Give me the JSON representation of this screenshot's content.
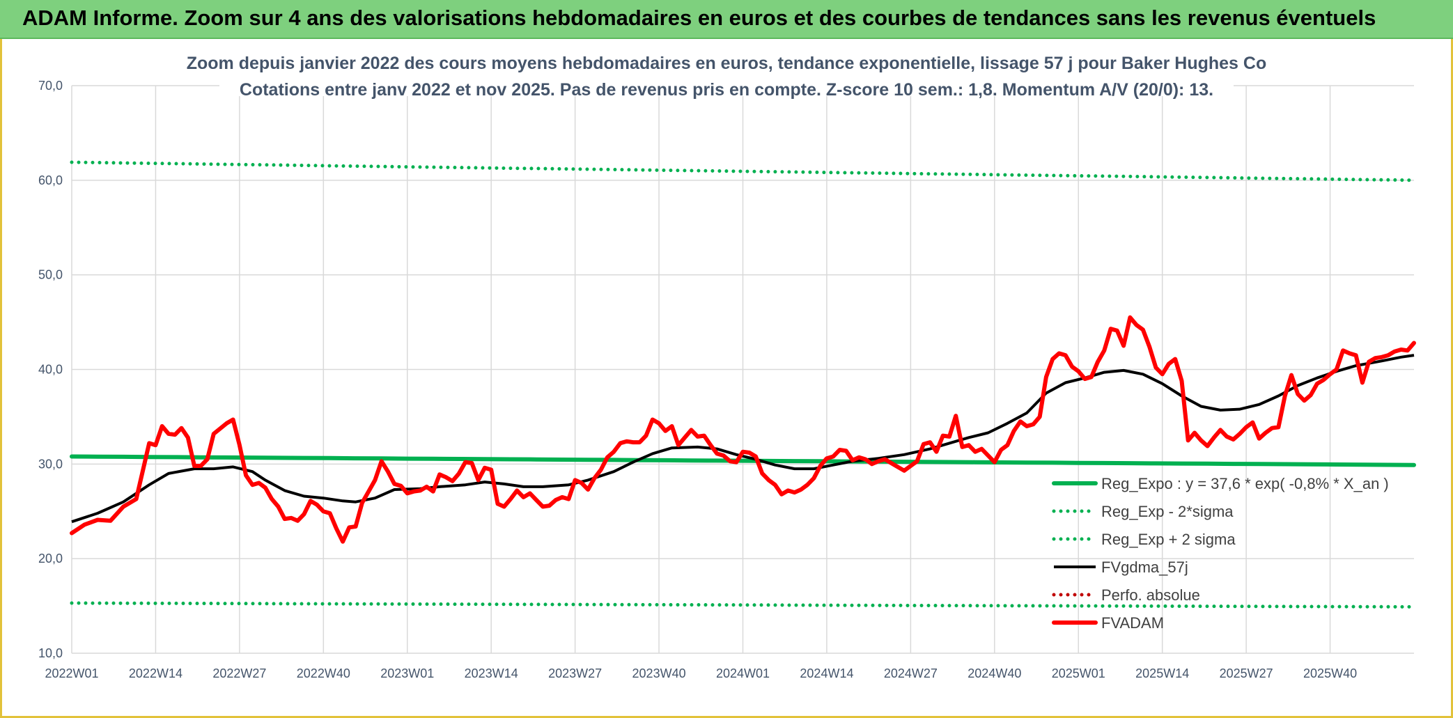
{
  "banner": {
    "title": "ADAM Informe. Zoom sur 4 ans des valorisations hebdomadaires en euros et des courbes de tendances sans les revenus éventuels"
  },
  "colors": {
    "banner_bg": "#7ed07e",
    "reg_expo": "#00b050",
    "fvgdma": "#000000",
    "fvadam": "#ff0000",
    "perfo": "#c00000",
    "frame": "#e2c23a"
  },
  "chart_data": {
    "type": "line",
    "title": "Zoom depuis janvier 2022 des cours moyens hebdomadaires en euros, tendance exponentielle, lissage 57 j pour Baker Hughes Co",
    "subtitle": "Cotations entre janv 2022 et nov 2025. Pas de revenus pris en compte. Z-score 10 sem.: 1,8. Momentum A/V (20/0): 13.",
    "ylim": [
      10,
      70
    ],
    "yticks": [
      "10,0",
      "20,0",
      "30,0",
      "40,0",
      "50,0",
      "60,0",
      "70,0"
    ],
    "ytick_values": [
      10,
      20,
      30,
      40,
      50,
      60,
      70
    ],
    "x_tick_labels": [
      "2022W01",
      "2022W14",
      "2022W27",
      "2022W40",
      "2023W01",
      "2023W14",
      "2023W27",
      "2023W40",
      "2024W01",
      "2024W14",
      "2024W27",
      "2024W40",
      "2025W01",
      "2025W14",
      "2025W27",
      "2025W40"
    ],
    "x_tick_weeks": [
      0,
      13,
      26,
      39,
      52,
      65,
      78,
      91,
      104,
      117,
      130,
      143,
      156,
      169,
      182,
      195
    ],
    "n_weeks": 209,
    "grid": true,
    "legend_position": "bottom-right",
    "series": [
      {
        "name": "Reg_Expo : y = 37,6 * exp( -0,8% *  X_an )",
        "style": "solid-thick",
        "color": "#00b050",
        "y_start": 30.8,
        "y_end": 29.9
      },
      {
        "name": "Reg_Exp - 2*sigma",
        "style": "dotted",
        "color": "#00b050",
        "y_start": 15.3,
        "y_end": 14.9
      },
      {
        "name": "Reg_Exp + 2 sigma",
        "style": "dotted",
        "color": "#00b050",
        "y_start": 61.9,
        "y_end": 60.0
      },
      {
        "name": "FVgdma_57j",
        "style": "solid",
        "color": "#000000",
        "points": [
          [
            0,
            23.9
          ],
          [
            4,
            24.8
          ],
          [
            8,
            26.0
          ],
          [
            12,
            27.8
          ],
          [
            15,
            29.0
          ],
          [
            19,
            29.5
          ],
          [
            22,
            29.5
          ],
          [
            25,
            29.7
          ],
          [
            28,
            29.2
          ],
          [
            30,
            28.3
          ],
          [
            33,
            27.2
          ],
          [
            36,
            26.6
          ],
          [
            39,
            26.4
          ],
          [
            42,
            26.1
          ],
          [
            44,
            26.0
          ],
          [
            47,
            26.4
          ],
          [
            50,
            27.3
          ],
          [
            54,
            27.4
          ],
          [
            57,
            27.6
          ],
          [
            61,
            27.8
          ],
          [
            64,
            28.1
          ],
          [
            67,
            27.9
          ],
          [
            70,
            27.6
          ],
          [
            73,
            27.6
          ],
          [
            77,
            27.8
          ],
          [
            80,
            28.3
          ],
          [
            84,
            29.2
          ],
          [
            87,
            30.2
          ],
          [
            90,
            31.1
          ],
          [
            93,
            31.7
          ],
          [
            97,
            31.8
          ],
          [
            100,
            31.6
          ],
          [
            103,
            31.0
          ],
          [
            106,
            30.5
          ],
          [
            109,
            29.9
          ],
          [
            112,
            29.5
          ],
          [
            115,
            29.5
          ],
          [
            118,
            29.9
          ],
          [
            121,
            30.3
          ],
          [
            125,
            30.6
          ],
          [
            129,
            31.0
          ],
          [
            133,
            31.6
          ],
          [
            136,
            32.2
          ],
          [
            139,
            32.8
          ],
          [
            142,
            33.3
          ],
          [
            145,
            34.3
          ],
          [
            148,
            35.4
          ],
          [
            151,
            37.5
          ],
          [
            154,
            38.6
          ],
          [
            157,
            39.1
          ],
          [
            160,
            39.7
          ],
          [
            163,
            39.9
          ],
          [
            166,
            39.5
          ],
          [
            169,
            38.5
          ],
          [
            172,
            37.2
          ],
          [
            175,
            36.1
          ],
          [
            178,
            35.7
          ],
          [
            181,
            35.8
          ],
          [
            184,
            36.3
          ],
          [
            187,
            37.2
          ],
          [
            190,
            38.3
          ],
          [
            193,
            39.1
          ],
          [
            196,
            39.8
          ],
          [
            199,
            40.4
          ],
          [
            203,
            40.9
          ],
          [
            206,
            41.3
          ],
          [
            208,
            41.5
          ]
        ]
      },
      {
        "name": "Perfo. absolue",
        "style": "dotted",
        "color": "#c00000"
      },
      {
        "name": "FVADAM",
        "style": "solid-thick",
        "color": "#ff0000",
        "points": [
          [
            0,
            22.7
          ],
          [
            2,
            23.6
          ],
          [
            4,
            24.1
          ],
          [
            6,
            24.0
          ],
          [
            8,
            25.5
          ],
          [
            10,
            26.3
          ],
          [
            12,
            32.2
          ],
          [
            13,
            32.0
          ],
          [
            14,
            34.0
          ],
          [
            15,
            33.2
          ],
          [
            16,
            33.1
          ],
          [
            17,
            33.8
          ],
          [
            18,
            32.8
          ],
          [
            19,
            29.8
          ],
          [
            20,
            29.8
          ],
          [
            21,
            30.5
          ],
          [
            22,
            33.2
          ],
          [
            24,
            34.3
          ],
          [
            25,
            34.7
          ],
          [
            26,
            32.0
          ],
          [
            27,
            28.8
          ],
          [
            28,
            27.8
          ],
          [
            29,
            28.0
          ],
          [
            30,
            27.5
          ],
          [
            31,
            26.3
          ],
          [
            32,
            25.5
          ],
          [
            33,
            24.2
          ],
          [
            34,
            24.3
          ],
          [
            35,
            24.0
          ],
          [
            36,
            24.7
          ],
          [
            37,
            26.1
          ],
          [
            38,
            25.7
          ],
          [
            39,
            25.0
          ],
          [
            40,
            24.8
          ],
          [
            41,
            23.2
          ],
          [
            42,
            21.8
          ],
          [
            43,
            23.3
          ],
          [
            44,
            23.4
          ],
          [
            45,
            25.9
          ],
          [
            46,
            27.1
          ],
          [
            47,
            28.3
          ],
          [
            48,
            30.3
          ],
          [
            49,
            29.2
          ],
          [
            50,
            27.9
          ],
          [
            51,
            27.7
          ],
          [
            52,
            26.9
          ],
          [
            53,
            27.1
          ],
          [
            54,
            27.2
          ],
          [
            55,
            27.6
          ],
          [
            56,
            27.1
          ],
          [
            57,
            28.9
          ],
          [
            58,
            28.6
          ],
          [
            59,
            28.2
          ],
          [
            60,
            29.0
          ],
          [
            61,
            30.2
          ],
          [
            62,
            30.1
          ],
          [
            63,
            28.3
          ],
          [
            64,
            29.6
          ],
          [
            65,
            29.4
          ],
          [
            66,
            25.8
          ],
          [
            67,
            25.5
          ],
          [
            68,
            26.3
          ],
          [
            69,
            27.2
          ],
          [
            70,
            26.5
          ],
          [
            71,
            26.9
          ],
          [
            72,
            26.2
          ],
          [
            73,
            25.5
          ],
          [
            74,
            25.6
          ],
          [
            75,
            26.2
          ],
          [
            76,
            26.5
          ],
          [
            77,
            26.3
          ],
          [
            78,
            28.3
          ],
          [
            79,
            28.0
          ],
          [
            80,
            27.3
          ],
          [
            81,
            28.5
          ],
          [
            82,
            29.4
          ],
          [
            83,
            30.7
          ],
          [
            84,
            31.3
          ],
          [
            85,
            32.2
          ],
          [
            86,
            32.4
          ],
          [
            87,
            32.3
          ],
          [
            88,
            32.3
          ],
          [
            89,
            33.0
          ],
          [
            90,
            34.7
          ],
          [
            91,
            34.3
          ],
          [
            92,
            33.5
          ],
          [
            93,
            34.0
          ],
          [
            94,
            32.0
          ],
          [
            95,
            32.8
          ],
          [
            96,
            33.6
          ],
          [
            97,
            32.9
          ],
          [
            98,
            33.0
          ],
          [
            99,
            32.0
          ],
          [
            100,
            31.1
          ],
          [
            101,
            30.9
          ],
          [
            102,
            30.3
          ],
          [
            103,
            30.2
          ],
          [
            104,
            31.3
          ],
          [
            105,
            31.2
          ],
          [
            106,
            30.8
          ],
          [
            107,
            29.0
          ],
          [
            108,
            28.3
          ],
          [
            109,
            27.8
          ],
          [
            110,
            26.8
          ],
          [
            111,
            27.2
          ],
          [
            112,
            27.0
          ],
          [
            113,
            27.3
          ],
          [
            114,
            27.8
          ],
          [
            115,
            28.5
          ],
          [
            116,
            29.8
          ],
          [
            117,
            30.6
          ],
          [
            118,
            30.8
          ],
          [
            119,
            31.5
          ],
          [
            120,
            31.4
          ],
          [
            121,
            30.4
          ],
          [
            122,
            30.7
          ],
          [
            123,
            30.5
          ],
          [
            124,
            30.0
          ],
          [
            125,
            30.3
          ],
          [
            126,
            30.5
          ],
          [
            127,
            30.1
          ],
          [
            128,
            29.7
          ],
          [
            129,
            29.3
          ],
          [
            130,
            29.8
          ],
          [
            131,
            30.3
          ],
          [
            132,
            32.1
          ],
          [
            133,
            32.3
          ],
          [
            134,
            31.3
          ],
          [
            135,
            33.0
          ],
          [
            136,
            32.9
          ],
          [
            137,
            35.1
          ],
          [
            138,
            31.8
          ],
          [
            139,
            32.0
          ],
          [
            140,
            31.3
          ],
          [
            141,
            31.6
          ],
          [
            142,
            30.9
          ],
          [
            143,
            30.2
          ],
          [
            144,
            31.5
          ],
          [
            145,
            32.0
          ],
          [
            146,
            33.5
          ],
          [
            147,
            34.5
          ],
          [
            148,
            34.0
          ],
          [
            149,
            34.2
          ],
          [
            150,
            35.0
          ],
          [
            151,
            39.2
          ],
          [
            152,
            41.1
          ],
          [
            153,
            41.7
          ],
          [
            154,
            41.5
          ],
          [
            155,
            40.3
          ],
          [
            156,
            39.8
          ],
          [
            157,
            39.0
          ],
          [
            158,
            39.2
          ],
          [
            159,
            40.8
          ],
          [
            160,
            42.0
          ],
          [
            161,
            44.3
          ],
          [
            162,
            44.1
          ],
          [
            163,
            42.5
          ],
          [
            164,
            45.5
          ],
          [
            165,
            44.7
          ],
          [
            166,
            44.2
          ],
          [
            167,
            42.4
          ],
          [
            168,
            40.2
          ],
          [
            169,
            39.5
          ],
          [
            170,
            40.6
          ],
          [
            171,
            41.1
          ],
          [
            172,
            38.8
          ],
          [
            173,
            32.5
          ],
          [
            174,
            33.3
          ],
          [
            175,
            32.5
          ],
          [
            176,
            31.9
          ],
          [
            177,
            32.8
          ],
          [
            178,
            33.6
          ],
          [
            179,
            32.9
          ],
          [
            180,
            32.6
          ],
          [
            181,
            33.2
          ],
          [
            182,
            33.9
          ],
          [
            183,
            34.4
          ],
          [
            184,
            32.7
          ],
          [
            185,
            33.3
          ],
          [
            186,
            33.8
          ],
          [
            187,
            33.9
          ],
          [
            188,
            37.2
          ],
          [
            189,
            39.4
          ],
          [
            190,
            37.4
          ],
          [
            191,
            36.7
          ],
          [
            192,
            37.3
          ],
          [
            193,
            38.5
          ],
          [
            194,
            38.9
          ],
          [
            195,
            39.5
          ],
          [
            196,
            40.0
          ],
          [
            197,
            42.0
          ],
          [
            198,
            41.7
          ],
          [
            199,
            41.5
          ],
          [
            200,
            38.6
          ],
          [
            201,
            40.8
          ],
          [
            202,
            41.2
          ],
          [
            203,
            41.3
          ],
          [
            204,
            41.5
          ],
          [
            205,
            41.9
          ],
          [
            206,
            42.1
          ],
          [
            207,
            42.0
          ],
          [
            208,
            42.8
          ]
        ]
      }
    ]
  }
}
